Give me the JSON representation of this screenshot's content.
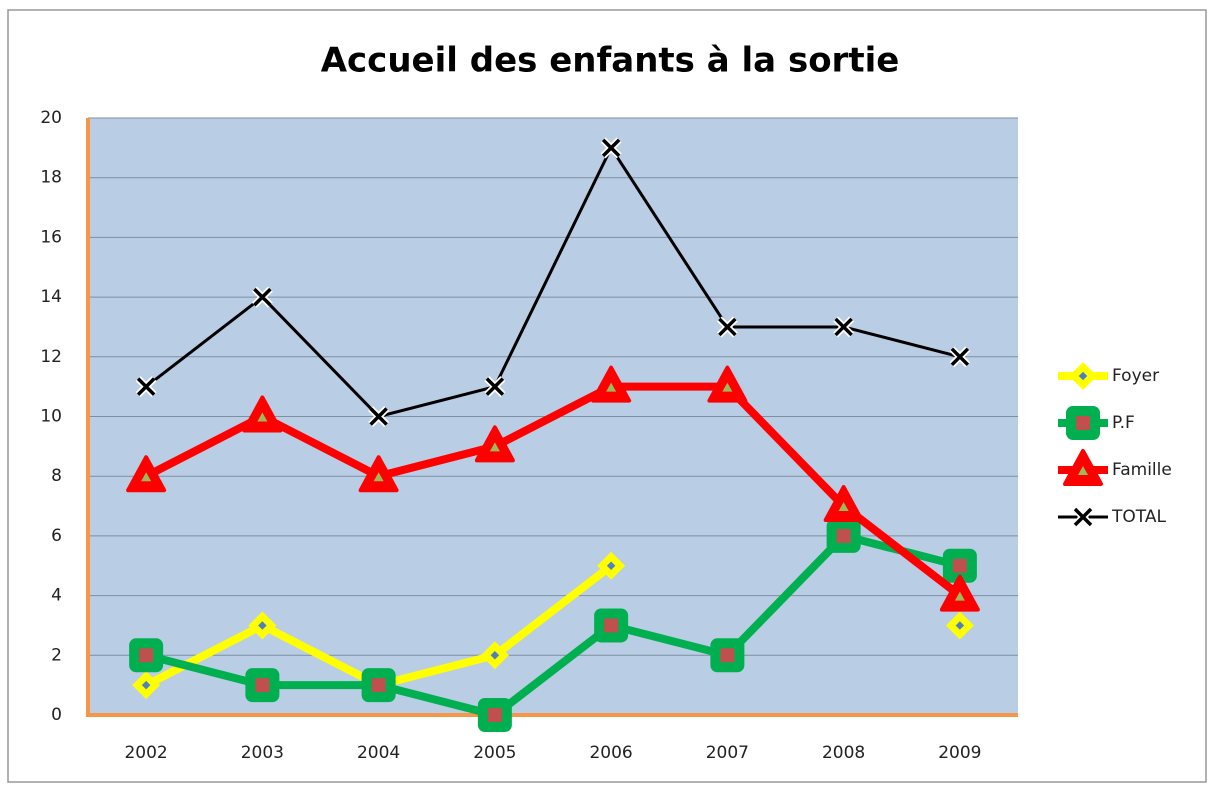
{
  "chart_data": {
    "type": "line",
    "title": "Accueil des enfants à la sortie",
    "categories": [
      "2002",
      "2003",
      "2004",
      "2005",
      "2006",
      "2007",
      "2008",
      "2009"
    ],
    "series": [
      {
        "name": "Foyer",
        "color": "#ffff00",
        "marker": "diamond",
        "values": [
          1,
          3,
          1,
          2,
          5,
          null,
          null,
          3
        ]
      },
      {
        "name": "P.F",
        "color": "#00b050",
        "marker": "square",
        "values": [
          2,
          1,
          1,
          0,
          3,
          2,
          6,
          5
        ]
      },
      {
        "name": "Famille",
        "color": "#ff0000",
        "marker": "triangle",
        "values": [
          8,
          10,
          8,
          9,
          11,
          11,
          7,
          4
        ]
      },
      {
        "name": "TOTAL",
        "color": "#000000",
        "marker": "x",
        "values": [
          11,
          14,
          10,
          11,
          19,
          13,
          13,
          12
        ]
      }
    ],
    "ylim": [
      0,
      20
    ],
    "yticks": [
      0,
      2,
      4,
      6,
      8,
      10,
      12,
      14,
      16,
      18,
      20
    ],
    "grid": true,
    "legend": "right"
  }
}
